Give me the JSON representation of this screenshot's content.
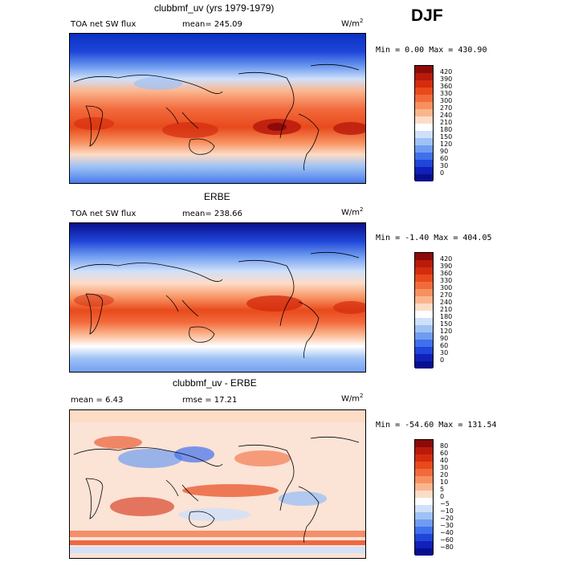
{
  "season": "DJF",
  "panels": [
    {
      "title": "clubbmf_uv (yrs 1979-1979)",
      "left_label": "TOA net SW flux",
      "center_label": "mean= 245.09",
      "units_base": "W/m",
      "units_exp": "2",
      "minmax": "Min =    0.00 Max = 430.90",
      "colorbar": {
        "labels": [
          "420",
          "390",
          "360",
          "330",
          "300",
          "270",
          "240",
          "210",
          "180",
          "150",
          "120",
          "90",
          "60",
          "30",
          "0"
        ],
        "colors": [
          "#8c0a0a",
          "#b81a0c",
          "#d42c0e",
          "#e84a1c",
          "#f26a3c",
          "#f7905e",
          "#fbb58e",
          "#fddcc6",
          "#ffffff",
          "#cfe0fa",
          "#9fc2f5",
          "#6f9cf0",
          "#4170ec",
          "#1f46d8",
          "#1020b8",
          "#080f8c"
        ]
      }
    },
    {
      "title": "ERBE",
      "left_label": "TOA net SW flux",
      "center_label": "mean= 238.66",
      "units_base": "W/m",
      "units_exp": "2",
      "minmax": "Min =  -1.40 Max = 404.05",
      "colorbar": {
        "labels": [
          "420",
          "390",
          "360",
          "330",
          "300",
          "270",
          "240",
          "210",
          "180",
          "150",
          "120",
          "90",
          "60",
          "30",
          "0"
        ],
        "colors": [
          "#8c0a0a",
          "#b81a0c",
          "#d42c0e",
          "#e84a1c",
          "#f26a3c",
          "#f7905e",
          "#fbb58e",
          "#fddcc6",
          "#ffffff",
          "#cfe0fa",
          "#9fc2f5",
          "#6f9cf0",
          "#4170ec",
          "#1f46d8",
          "#1020b8",
          "#080f8c"
        ]
      }
    },
    {
      "title": "clubbmf_uv - ERBE",
      "left_label": "mean =    6.43",
      "center_label": "rmse =  17.21",
      "units_base": "W/m",
      "units_exp": "2",
      "minmax": "Min = -54.60 Max = 131.54",
      "colorbar": {
        "labels": [
          "80",
          "60",
          "40",
          "30",
          "20",
          "10",
          "5",
          "0",
          "−5",
          "−10",
          "−20",
          "−30",
          "−40",
          "−60",
          "−80"
        ],
        "colors": [
          "#8c0a0a",
          "#b81a0c",
          "#d42c0e",
          "#e84a1c",
          "#f26a3c",
          "#f7905e",
          "#fbb58e",
          "#fddcc6",
          "#ffffff",
          "#cfe0fa",
          "#9fc2f5",
          "#6f9cf0",
          "#4170ec",
          "#1f46d8",
          "#1020b8",
          "#080f8c"
        ]
      }
    }
  ]
}
